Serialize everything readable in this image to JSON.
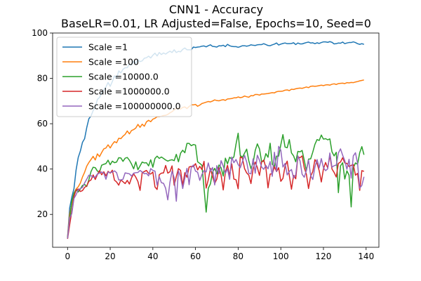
{
  "chart_data": {
    "type": "line",
    "title": "CNN1 - Accuracy",
    "subtitle": "BaseLR=0.01, LR Adjusted=False, Epochs=10, Seed=0",
    "xlabel": "",
    "ylabel": "",
    "xlim": [
      -7,
      146
    ],
    "ylim": [
      5.5,
      100
    ],
    "xticks": [
      0,
      20,
      40,
      60,
      80,
      100,
      120,
      140
    ],
    "yticks": [
      20,
      40,
      60,
      80,
      100
    ],
    "grid": false,
    "legend_position": "upper-left",
    "x": [
      0,
      1,
      2,
      3,
      4,
      5,
      6,
      7,
      8,
      9,
      10,
      11,
      12,
      13,
      14,
      15,
      16,
      17,
      18,
      19,
      20,
      21,
      22,
      23,
      24,
      25,
      26,
      27,
      28,
      29,
      30,
      31,
      32,
      33,
      34,
      35,
      36,
      37,
      38,
      39,
      40,
      41,
      42,
      43,
      44,
      45,
      46,
      47,
      48,
      49,
      50,
      51,
      52,
      53,
      54,
      55,
      56,
      57,
      58,
      59,
      60,
      61,
      62,
      63,
      64,
      65,
      66,
      67,
      68,
      69,
      70,
      71,
      72,
      73,
      74,
      75,
      76,
      77,
      78,
      79,
      80,
      81,
      82,
      83,
      84,
      85,
      86,
      87,
      88,
      89,
      90,
      91,
      92,
      93,
      94,
      95,
      96,
      97,
      98,
      99,
      100,
      101,
      102,
      103,
      104,
      105,
      106,
      107,
      108,
      109,
      110,
      111,
      112,
      113,
      114,
      115,
      116,
      117,
      118,
      119,
      120,
      121,
      122,
      123,
      124,
      125,
      126,
      127,
      128,
      129,
      130,
      131,
      132,
      133,
      134,
      135,
      136,
      137,
      138,
      139
    ],
    "series": [
      {
        "name": "Scale =1",
        "color": "#1f77b4",
        "values": [
          9.8,
          22.9,
          27.7,
          31.3,
          39.6,
          45.1,
          47.9,
          51.8,
          53.4,
          58.3,
          62.2,
          63.4,
          65.8,
          67.4,
          70.7,
          71.6,
          73.6,
          75.0,
          76.2,
          78.2,
          76.5,
          78.6,
          81.1,
          80.1,
          83.3,
          82.4,
          84.0,
          84.7,
          84.7,
          86.3,
          85.8,
          87.6,
          86.7,
          88.2,
          87.4,
          87.7,
          88.9,
          89.1,
          89.8,
          89.0,
          90.2,
          91.1,
          89.9,
          91.4,
          90.5,
          91.2,
          90.7,
          91.4,
          92.0,
          91.4,
          92.6,
          91.4,
          91.9,
          91.7,
          92.8,
          93.4,
          92.6,
          92.6,
          92.6,
          93.8,
          93.6,
          93.8,
          93.9,
          94.2,
          94.3,
          93.9,
          94.4,
          94.8,
          94.1,
          94.0,
          93.8,
          94.4,
          94.3,
          94.6,
          94.0,
          95.0,
          94.4,
          94.1,
          94.0,
          94.0,
          93.7,
          94.0,
          94.4,
          94.4,
          94.2,
          94.4,
          94.8,
          94.6,
          94.5,
          94.8,
          94.9,
          94.9,
          95.3,
          94.9,
          94.5,
          94.4,
          94.8,
          95.1,
          95.6,
          94.7,
          95.1,
          95.4,
          95.6,
          95.3,
          95.3,
          95.4,
          95.7,
          94.9,
          95.6,
          95.2,
          95.2,
          95.5,
          95.8,
          96.0,
          95.6,
          95.7,
          95.3,
          95.7,
          95.4,
          95.8,
          96.1,
          96.1,
          95.9,
          96.2,
          95.9,
          95.2,
          95.3,
          95.6,
          95.5,
          96.0,
          95.3,
          95.6,
          95.8,
          95.8,
          96.1,
          95.8,
          95.3,
          95.0,
          95.3,
          95.0
        ]
      },
      {
        "name": "Scale =100",
        "color": "#ff7f0e",
        "values": [
          9.9,
          20.2,
          24.8,
          29.3,
          31.2,
          32.2,
          33.8,
          36.5,
          38.6,
          41.3,
          42.9,
          44.2,
          45.6,
          44.0,
          46.7,
          45.5,
          47.3,
          48.9,
          49.3,
          50.7,
          49.3,
          50.9,
          52.1,
          51.6,
          53.6,
          53.4,
          54.5,
          55.3,
          56.8,
          55.5,
          57.0,
          57.4,
          58.1,
          59.7,
          58.4,
          59.8,
          58.9,
          60.8,
          61.5,
          60.9,
          62.0,
          62.4,
          63.1,
          63.1,
          63.3,
          63.6,
          63.7,
          64.1,
          64.8,
          65.3,
          66.1,
          66.7,
          66.8,
          66.5,
          67.2,
          67.4,
          66.7,
          67.6,
          68.3,
          68.3,
          68.5,
          67.7,
          68.2,
          68.9,
          69.2,
          69.5,
          69.8,
          69.6,
          70.0,
          70.5,
          70.2,
          70.1,
          70.4,
          70.6,
          70.3,
          70.9,
          71.0,
          71.1,
          71.4,
          71.4,
          71.8,
          71.5,
          71.7,
          72.2,
          71.9,
          71.7,
          72.4,
          72.3,
          72.9,
          72.9,
          72.6,
          73.1,
          73.1,
          73.2,
          73.3,
          73.5,
          73.7,
          73.6,
          74.1,
          74.3,
          74.3,
          74.4,
          74.8,
          74.9,
          74.6,
          75.2,
          75.1,
          75.4,
          75.6,
          75.7,
          75.6,
          75.9,
          76.2,
          75.9,
          76.5,
          76.6,
          76.5,
          76.6,
          76.8,
          77.0,
          76.8,
          77.1,
          77.2,
          77.0,
          77.4,
          77.6,
          77.3,
          77.7,
          77.8,
          77.9,
          77.7,
          78.1,
          78.0,
          78.2,
          78.1,
          78.4,
          78.6,
          78.9,
          79.1,
          79.3
        ]
      },
      {
        "name": "Scale =10000.0",
        "color": "#2ca02c",
        "values": [
          9.6,
          17.9,
          25.9,
          29.3,
          30.9,
          29.9,
          31.2,
          32.8,
          33.2,
          32.3,
          35.3,
          38.9,
          40.8,
          40.6,
          39.1,
          38.7,
          41.7,
          42.1,
          42.4,
          43.9,
          41.9,
          43.5,
          42.8,
          43.1,
          45.0,
          44.9,
          43.4,
          44.8,
          45.1,
          43.9,
          42.2,
          40.1,
          43.2,
          39.7,
          41.4,
          43.1,
          42.7,
          42.8,
          41.4,
          44.1,
          40.8,
          44.7,
          45.7,
          44.7,
          45.3,
          44.7,
          44.0,
          43.5,
          43.9,
          44.1,
          43.7,
          46.5,
          43.2,
          47.0,
          48.3,
          47.2,
          51.3,
          51.3,
          50.3,
          50.8,
          50.6,
          43.2,
          42.5,
          41.7,
          31.5,
          21.0,
          31.5,
          33.5,
          38.7,
          40.3,
          37.9,
          41.8,
          40.6,
          36.9,
          44.8,
          42.3,
          45.2,
          44.4,
          45.4,
          51.0,
          55.8,
          46.0,
          45.2,
          47.0,
          48.8,
          43.6,
          40.2,
          42.6,
          48.2,
          51.1,
          48.9,
          43.3,
          43.4,
          46.8,
          45.2,
          51.4,
          42.1,
          41.1,
          45.7,
          45.7,
          50.7,
          55.2,
          49.7,
          49.4,
          53.0,
          47.1,
          45.8,
          43.2,
          47.8,
          47.6,
          48.2,
          43.8,
          39.3,
          44.4,
          44.5,
          47.5,
          50.9,
          53.0,
          52.6,
          55.0,
          53.2,
          53.4,
          52.9,
          53.3,
          47.6,
          45.8,
          47.4,
          29.6,
          41.4,
          42.8,
          35.6,
          39.2,
          37.3,
          23.3,
          40.5,
          42.7,
          42.1,
          47.2,
          49.9,
          46.3
        ]
      },
      {
        "name": "Scale =1000000.0",
        "color": "#d62728",
        "values": [
          9.2,
          15.5,
          21.4,
          27.9,
          30.7,
          31.2,
          30.1,
          30.5,
          31.9,
          32.6,
          34.6,
          35.2,
          37.4,
          35.4,
          37.6,
          39.3,
          37.5,
          38.8,
          37.0,
          39.0,
          38.2,
          39.5,
          35.1,
          34.3,
          32.9,
          35.2,
          34.4,
          33.6,
          35.0,
          33.4,
          36.1,
          37.9,
          36.4,
          34.5,
          30.6,
          38.4,
          38.9,
          39.4,
          38.1,
          37.8,
          38.7,
          32.1,
          31.0,
          37.5,
          38.2,
          38.3,
          41.6,
          38.2,
          38.8,
          41.4,
          32.9,
          36.7,
          40.2,
          39.4,
          32.8,
          38.4,
          36.4,
          40.9,
          41.2,
          41.0,
          42.4,
          39.6,
          41.2,
          39.8,
          43.4,
          31.6,
          35.3,
          40.3,
          36.6,
          33.6,
          35.6,
          40.5,
          37.3,
          30.8,
          38.6,
          41.7,
          37.1,
          42.3,
          35.6,
          35.3,
          31.3,
          45.4,
          44.8,
          40.2,
          38.3,
          37.3,
          33.6,
          40.0,
          43.1,
          40.7,
          37.2,
          43.1,
          44.0,
          40.6,
          31.7,
          37.8,
          37.9,
          41.0,
          38.9,
          40.6,
          34.6,
          35.9,
          41.3,
          43.5,
          37.1,
          31.1,
          37.2,
          35.7,
          45.4,
          45.0,
          45.8,
          40.6,
          37.7,
          31.4,
          36.9,
          38.9,
          44.2,
          42.5,
          39.3,
          34.3,
          40.1,
          42.9,
          40.5,
          46.1,
          40.0,
          38.5,
          36.5,
          42.5,
          43.1,
          45.0,
          42.7,
          42.5,
          41.1,
          41.6,
          42.0,
          37.3,
          38.1,
          30.6,
          39.3,
          39.0
        ]
      },
      {
        "name": "Scale =100000000.0",
        "color": "#9467bd",
        "values": [
          9.4,
          18.4,
          20.4,
          27.0,
          28.7,
          30.8,
          31.4,
          31.9,
          33.9,
          35.5,
          37.3,
          37.1,
          36.4,
          36.5,
          37.8,
          38.2,
          38.7,
          38.2,
          35.5,
          38.7,
          38.4,
          38.7,
          39.2,
          38.4,
          35.2,
          35.2,
          35.5,
          38.3,
          38.1,
          37.9,
          36.9,
          38.2,
          38.4,
          38.5,
          39.4,
          38.7,
          37.9,
          38.1,
          37.0,
          40.2,
          39.4,
          39.1,
          32.9,
          36.6,
          34.0,
          33.7,
          31.5,
          26.4,
          34.1,
          39.1,
          36.1,
          25.8,
          39.2,
          36.6,
          31.4,
          36.0,
          40.3,
          33.1,
          40.7,
          41.8,
          39.1,
          38.6,
          35.0,
          37.6,
          39.3,
          38.7,
          42.7,
          39.0,
          40.7,
          33.0,
          41.5,
          37.9,
          43.7,
          41.3,
          38.1,
          40.1,
          35.5,
          45.3,
          42.8,
          44.2,
          42.0,
          40.6,
          43.3,
          46.0,
          43.1,
          38.1,
          37.9,
          44.5,
          38.2,
          46.1,
          43.9,
          40.9,
          39.9,
          41.6,
          40.1,
          43.3,
          36.8,
          47.4,
          38.9,
          50.0,
          48.3,
          40.9,
          42.5,
          37.4,
          39.0,
          39.8,
          36.1,
          37.5,
          45.8,
          43.6,
          37.7,
          36.4,
          39.4,
          44.0,
          37.1,
          35.4,
          40.9,
          44.2,
          40.5,
          44.6,
          40.6,
          39.3,
          40.1,
          47.1,
          40.8,
          41.5,
          41.7,
          47.1,
          48.9,
          46.1,
          43.7,
          39.9,
          44.3,
          36.0,
          45.8,
          47.2,
          42.5,
          31.6,
          32.8,
          36.6
        ]
      }
    ]
  }
}
